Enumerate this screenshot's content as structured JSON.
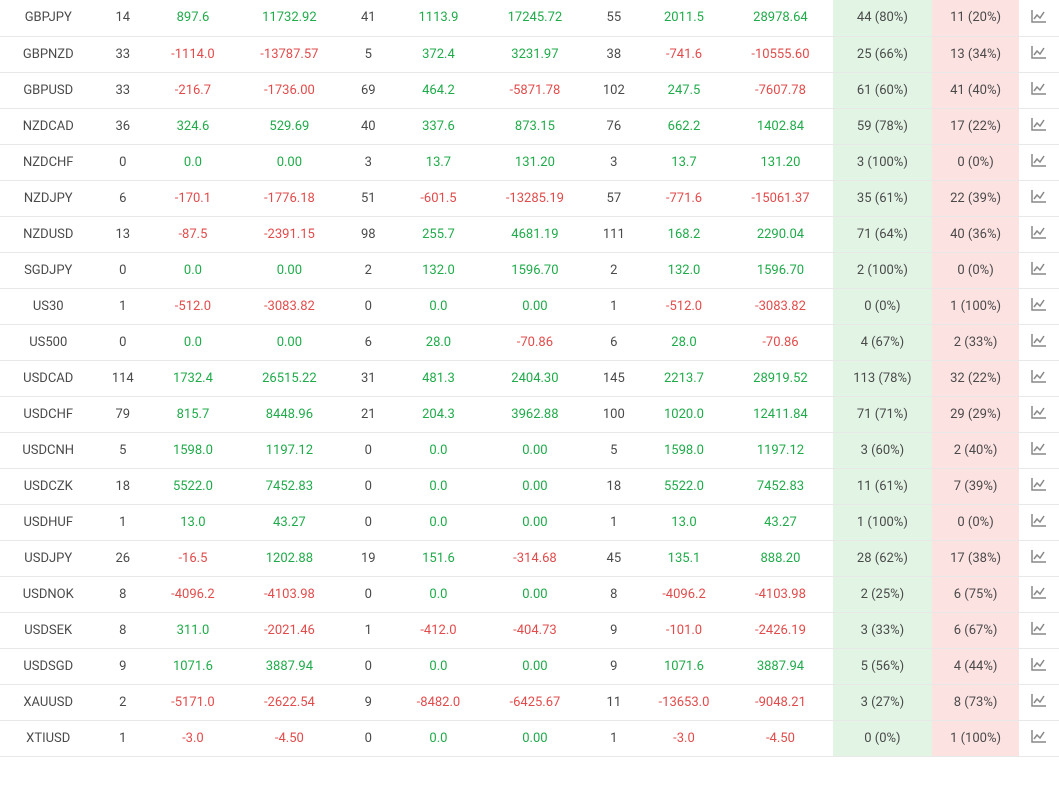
{
  "colors": {
    "positive": "#1fab4a",
    "negative": "#e24b4b",
    "neutral_text": "#4a4a4a",
    "win_bg": "#e2f5e5",
    "loss_bg": "#fde2e2",
    "border": "#e8e8e8",
    "icon": "#888888"
  },
  "columns": [
    "symbol",
    "count_a",
    "val_a1",
    "val_a2",
    "count_b",
    "val_b1",
    "val_b2",
    "count_c",
    "val_c1",
    "val_c2",
    "wins",
    "losses",
    "chart"
  ],
  "rows": [
    {
      "symbol": "GBPJPY",
      "n1": "14",
      "v1": "897.6",
      "v2": "11732.92",
      "n2": "41",
      "v3": "1113.9",
      "v4": "17245.72",
      "n3": "55",
      "v5": "2011.5",
      "v6": "28978.64",
      "win": "44 (80%)",
      "loss": "11 (20%)"
    },
    {
      "symbol": "GBPNZD",
      "n1": "33",
      "v1": "-1114.0",
      "v2": "-13787.57",
      "n2": "5",
      "v3": "372.4",
      "v4": "3231.97",
      "n3": "38",
      "v5": "-741.6",
      "v6": "-10555.60",
      "win": "25 (66%)",
      "loss": "13 (34%)"
    },
    {
      "symbol": "GBPUSD",
      "n1": "33",
      "v1": "-216.7",
      "v2": "-1736.00",
      "n2": "69",
      "v3": "464.2",
      "v4": "-5871.78",
      "n3": "102",
      "v5": "247.5",
      "v6": "-7607.78",
      "win": "61 (60%)",
      "loss": "41 (40%)"
    },
    {
      "symbol": "NZDCAD",
      "n1": "36",
      "v1": "324.6",
      "v2": "529.69",
      "n2": "40",
      "v3": "337.6",
      "v4": "873.15",
      "n3": "76",
      "v5": "662.2",
      "v6": "1402.84",
      "win": "59 (78%)",
      "loss": "17 (22%)"
    },
    {
      "symbol": "NZDCHF",
      "n1": "0",
      "v1": "0.0",
      "v2": "0.00",
      "n2": "3",
      "v3": "13.7",
      "v4": "131.20",
      "n3": "3",
      "v5": "13.7",
      "v6": "131.20",
      "win": "3 (100%)",
      "loss": "0 (0%)"
    },
    {
      "symbol": "NZDJPY",
      "n1": "6",
      "v1": "-170.1",
      "v2": "-1776.18",
      "n2": "51",
      "v3": "-601.5",
      "v4": "-13285.19",
      "n3": "57",
      "v5": "-771.6",
      "v6": "-15061.37",
      "win": "35 (61%)",
      "loss": "22 (39%)"
    },
    {
      "symbol": "NZDUSD",
      "n1": "13",
      "v1": "-87.5",
      "v2": "-2391.15",
      "n2": "98",
      "v3": "255.7",
      "v4": "4681.19",
      "n3": "111",
      "v5": "168.2",
      "v6": "2290.04",
      "win": "71 (64%)",
      "loss": "40 (36%)"
    },
    {
      "symbol": "SGDJPY",
      "n1": "0",
      "v1": "0.0",
      "v2": "0.00",
      "n2": "2",
      "v3": "132.0",
      "v4": "1596.70",
      "n3": "2",
      "v5": "132.0",
      "v6": "1596.70",
      "win": "2 (100%)",
      "loss": "0 (0%)"
    },
    {
      "symbol": "US30",
      "n1": "1",
      "v1": "-512.0",
      "v2": "-3083.82",
      "n2": "0",
      "v3": "0.0",
      "v4": "0.00",
      "n3": "1",
      "v5": "-512.0",
      "v6": "-3083.82",
      "win": "0 (0%)",
      "loss": "1 (100%)"
    },
    {
      "symbol": "US500",
      "n1": "0",
      "v1": "0.0",
      "v2": "0.00",
      "n2": "6",
      "v3": "28.0",
      "v4": "-70.86",
      "n3": "6",
      "v5": "28.0",
      "v6": "-70.86",
      "win": "4 (67%)",
      "loss": "2 (33%)"
    },
    {
      "symbol": "USDCAD",
      "n1": "114",
      "v1": "1732.4",
      "v2": "26515.22",
      "n2": "31",
      "v3": "481.3",
      "v4": "2404.30",
      "n3": "145",
      "v5": "2213.7",
      "v6": "28919.52",
      "win": "113 (78%)",
      "loss": "32 (22%)"
    },
    {
      "symbol": "USDCHF",
      "n1": "79",
      "v1": "815.7",
      "v2": "8448.96",
      "n2": "21",
      "v3": "204.3",
      "v4": "3962.88",
      "n3": "100",
      "v5": "1020.0",
      "v6": "12411.84",
      "win": "71 (71%)",
      "loss": "29 (29%)"
    },
    {
      "symbol": "USDCNH",
      "n1": "5",
      "v1": "1598.0",
      "v2": "1197.12",
      "n2": "0",
      "v3": "0.0",
      "v4": "0.00",
      "n3": "5",
      "v5": "1598.0",
      "v6": "1197.12",
      "win": "3 (60%)",
      "loss": "2 (40%)"
    },
    {
      "symbol": "USDCZK",
      "n1": "18",
      "v1": "5522.0",
      "v2": "7452.83",
      "n2": "0",
      "v3": "0.0",
      "v4": "0.00",
      "n3": "18",
      "v5": "5522.0",
      "v6": "7452.83",
      "win": "11 (61%)",
      "loss": "7 (39%)"
    },
    {
      "symbol": "USDHUF",
      "n1": "1",
      "v1": "13.0",
      "v2": "43.27",
      "n2": "0",
      "v3": "0.0",
      "v4": "0.00",
      "n3": "1",
      "v5": "13.0",
      "v6": "43.27",
      "win": "1 (100%)",
      "loss": "0 (0%)"
    },
    {
      "symbol": "USDJPY",
      "n1": "26",
      "v1": "-16.5",
      "v2": "1202.88",
      "n2": "19",
      "v3": "151.6",
      "v4": "-314.68",
      "n3": "45",
      "v5": "135.1",
      "v6": "888.20",
      "win": "28 (62%)",
      "loss": "17 (38%)"
    },
    {
      "symbol": "USDNOK",
      "n1": "8",
      "v1": "-4096.2",
      "v2": "-4103.98",
      "n2": "0",
      "v3": "0.0",
      "v4": "0.00",
      "n3": "8",
      "v5": "-4096.2",
      "v6": "-4103.98",
      "win": "2 (25%)",
      "loss": "6 (75%)"
    },
    {
      "symbol": "USDSEK",
      "n1": "8",
      "v1": "311.0",
      "v2": "-2021.46",
      "n2": "1",
      "v3": "-412.0",
      "v4": "-404.73",
      "n3": "9",
      "v5": "-101.0",
      "v6": "-2426.19",
      "win": "3 (33%)",
      "loss": "6 (67%)"
    },
    {
      "symbol": "USDSGD",
      "n1": "9",
      "v1": "1071.6",
      "v2": "3887.94",
      "n2": "0",
      "v3": "0.0",
      "v4": "0.00",
      "n3": "9",
      "v5": "1071.6",
      "v6": "3887.94",
      "win": "5 (56%)",
      "loss": "4 (44%)"
    },
    {
      "symbol": "XAUUSD",
      "n1": "2",
      "v1": "-5171.0",
      "v2": "-2622.54",
      "n2": "9",
      "v3": "-8482.0",
      "v4": "-6425.67",
      "n3": "11",
      "v5": "-13653.0",
      "v6": "-9048.21",
      "win": "3 (27%)",
      "loss": "8 (73%)"
    },
    {
      "symbol": "XTIUSD",
      "n1": "1",
      "v1": "-3.0",
      "v2": "-4.50",
      "n2": "0",
      "v3": "0.0",
      "v4": "0.00",
      "n3": "1",
      "v5": "-3.0",
      "v6": "-4.50",
      "win": "0 (0%)",
      "loss": "1 (100%)"
    }
  ]
}
